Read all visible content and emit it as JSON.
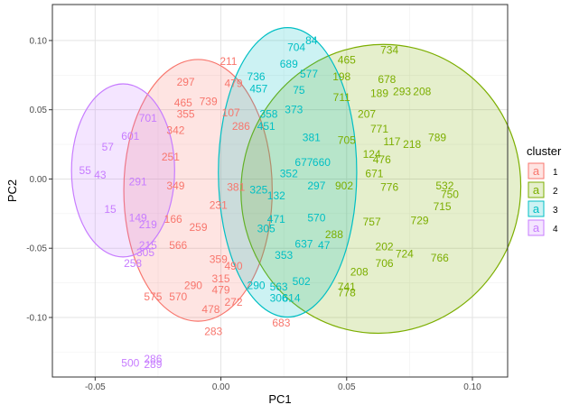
{
  "chart_data": {
    "type": "scatter",
    "title": "",
    "xlabel": "PC1",
    "ylabel": "PC2",
    "xlim": [
      -0.067,
      0.114
    ],
    "ylim": [
      -0.143,
      0.126
    ],
    "x_ticks": [
      -0.05,
      0.0,
      0.05,
      0.1
    ],
    "x_tick_labels": [
      "-0.05",
      "0.00",
      "0.05",
      "0.10"
    ],
    "y_ticks": [
      -0.1,
      -0.05,
      0.0,
      0.05,
      0.1
    ],
    "y_tick_labels": [
      "-0.10",
      "-0.05",
      "0.00",
      "0.05",
      "0.10"
    ],
    "grid": true,
    "legend": {
      "title": "cluster",
      "position": "right",
      "symbol": "a",
      "entries": [
        "1",
        "2",
        "3",
        "4"
      ]
    },
    "series": [
      {
        "name": "1",
        "color": "#F8766D",
        "ellipse": {
          "cx": -0.0091,
          "cy": -0.0082,
          "rx": 0.0295,
          "ry": 0.0945,
          "angle_deg": 0
        },
        "points": [
          {
            "label": "211",
            "x": 0.003,
            "y": 0.085
          },
          {
            "label": "297",
            "x": -0.014,
            "y": 0.07
          },
          {
            "label": "479",
            "x": 0.005,
            "y": 0.069
          },
          {
            "label": "465",
            "x": -0.015,
            "y": 0.055
          },
          {
            "label": "739",
            "x": -0.005,
            "y": 0.056
          },
          {
            "label": "107",
            "x": 0.004,
            "y": 0.048
          },
          {
            "label": "355",
            "x": -0.014,
            "y": 0.047
          },
          {
            "label": "342",
            "x": -0.018,
            "y": 0.035
          },
          {
            "label": "286",
            "x": 0.008,
            "y": 0.038
          },
          {
            "label": "251",
            "x": -0.02,
            "y": 0.016
          },
          {
            "label": "381",
            "x": 0.006,
            "y": -0.006
          },
          {
            "label": "349",
            "x": -0.018,
            "y": -0.005
          },
          {
            "label": "166",
            "x": -0.019,
            "y": -0.029
          },
          {
            "label": "231",
            "x": -0.001,
            "y": -0.019
          },
          {
            "label": "259",
            "x": -0.009,
            "y": -0.035
          },
          {
            "label": "566",
            "x": -0.017,
            "y": -0.048
          },
          {
            "label": "359",
            "x": -0.001,
            "y": -0.058
          },
          {
            "label": "490",
            "x": 0.005,
            "y": -0.063
          },
          {
            "label": "315",
            "x": 0.0,
            "y": -0.072
          },
          {
            "label": "290",
            "x": -0.011,
            "y": -0.077
          },
          {
            "label": "570",
            "x": -0.017,
            "y": -0.085
          },
          {
            "label": "575",
            "x": -0.027,
            "y": -0.085
          },
          {
            "label": "479",
            "x": 0.0,
            "y": -0.08
          },
          {
            "label": "272",
            "x": 0.005,
            "y": -0.089
          },
          {
            "label": "478",
            "x": -0.004,
            "y": -0.094
          },
          {
            "label": "283",
            "x": -0.003,
            "y": -0.11
          },
          {
            "label": "683",
            "x": 0.024,
            "y": -0.104
          }
        ]
      },
      {
        "name": "2",
        "color": "#7CAE00",
        "ellipse": {
          "cx": 0.0636,
          "cy": -0.0071,
          "rx": 0.0555,
          "ry": 0.1045,
          "angle_deg": -14
        },
        "points": [
          {
            "label": "734",
            "x": 0.067,
            "y": 0.093
          },
          {
            "label": "465",
            "x": 0.05,
            "y": 0.086
          },
          {
            "label": "678",
            "x": 0.066,
            "y": 0.072
          },
          {
            "label": "198",
            "x": 0.048,
            "y": 0.074
          },
          {
            "label": "189",
            "x": 0.063,
            "y": 0.062
          },
          {
            "label": "293",
            "x": 0.072,
            "y": 0.063
          },
          {
            "label": "208",
            "x": 0.08,
            "y": 0.063
          },
          {
            "label": "711",
            "x": 0.048,
            "y": 0.059
          },
          {
            "label": "207",
            "x": 0.058,
            "y": 0.047
          },
          {
            "label": "771",
            "x": 0.063,
            "y": 0.036
          },
          {
            "label": "789",
            "x": 0.086,
            "y": 0.03
          },
          {
            "label": "117",
            "x": 0.068,
            "y": 0.027
          },
          {
            "label": "218",
            "x": 0.076,
            "y": 0.025
          },
          {
            "label": "705",
            "x": 0.05,
            "y": 0.028
          },
          {
            "label": "124",
            "x": 0.06,
            "y": 0.018
          },
          {
            "label": "476",
            "x": 0.064,
            "y": 0.014
          },
          {
            "label": "671",
            "x": 0.061,
            "y": 0.004
          },
          {
            "label": "776",
            "x": 0.067,
            "y": -0.006
          },
          {
            "label": "532",
            "x": 0.089,
            "y": -0.005
          },
          {
            "label": "750",
            "x": 0.091,
            "y": -0.011
          },
          {
            "label": "715",
            "x": 0.088,
            "y": -0.02
          },
          {
            "label": "729",
            "x": 0.079,
            "y": -0.03
          },
          {
            "label": "902",
            "x": 0.049,
            "y": -0.005
          },
          {
            "label": "757",
            "x": 0.06,
            "y": -0.031
          },
          {
            "label": "288",
            "x": 0.045,
            "y": -0.04
          },
          {
            "label": "202",
            "x": 0.065,
            "y": -0.049
          },
          {
            "label": "724",
            "x": 0.073,
            "y": -0.054
          },
          {
            "label": "766",
            "x": 0.087,
            "y": -0.057
          },
          {
            "label": "706",
            "x": 0.065,
            "y": -0.061
          },
          {
            "label": "208",
            "x": 0.055,
            "y": -0.067
          },
          {
            "label": "741",
            "x": 0.05,
            "y": -0.078
          },
          {
            "label": "778",
            "x": 0.05,
            "y": -0.082
          }
        ]
      },
      {
        "name": "3",
        "color": "#00BFC4",
        "ellipse": {
          "cx": 0.0265,
          "cy": 0.0048,
          "rx": 0.0275,
          "ry": 0.1045,
          "angle_deg": 0
        },
        "points": [
          {
            "label": "84",
            "x": 0.036,
            "y": 0.1
          },
          {
            "label": "704",
            "x": 0.03,
            "y": 0.095
          },
          {
            "label": "689",
            "x": 0.027,
            "y": 0.083
          },
          {
            "label": "736",
            "x": 0.014,
            "y": 0.074
          },
          {
            "label": "577",
            "x": 0.035,
            "y": 0.076
          },
          {
            "label": "75",
            "x": 0.031,
            "y": 0.064
          },
          {
            "label": "457",
            "x": 0.015,
            "y": 0.065
          },
          {
            "label": "373",
            "x": 0.029,
            "y": 0.05
          },
          {
            "label": "358",
            "x": 0.019,
            "y": 0.047
          },
          {
            "label": "451",
            "x": 0.018,
            "y": 0.038
          },
          {
            "label": "381",
            "x": 0.036,
            "y": 0.03
          },
          {
            "label": "677",
            "x": 0.033,
            "y": 0.012
          },
          {
            "label": "660",
            "x": 0.04,
            "y": 0.012
          },
          {
            "label": "297",
            "x": 0.038,
            "y": -0.005
          },
          {
            "label": "352",
            "x": 0.027,
            "y": 0.004
          },
          {
            "label": "325",
            "x": 0.015,
            "y": -0.008
          },
          {
            "label": "132",
            "x": 0.022,
            "y": -0.012
          },
          {
            "label": "570",
            "x": 0.038,
            "y": -0.028
          },
          {
            "label": "471",
            "x": 0.022,
            "y": -0.029
          },
          {
            "label": "305",
            "x": 0.018,
            "y": -0.036
          },
          {
            "label": "47",
            "x": 0.041,
            "y": -0.048
          },
          {
            "label": "637",
            "x": 0.033,
            "y": -0.047
          },
          {
            "label": "353",
            "x": 0.025,
            "y": -0.055
          },
          {
            "label": "502",
            "x": 0.032,
            "y": -0.074
          },
          {
            "label": "563",
            "x": 0.023,
            "y": -0.078
          },
          {
            "label": "306",
            "x": 0.023,
            "y": -0.086
          },
          {
            "label": "614",
            "x": 0.028,
            "y": -0.086
          },
          {
            "label": "290",
            "x": 0.014,
            "y": -0.077
          }
        ]
      },
      {
        "name": "4",
        "color": "#C77CFF",
        "ellipse": {
          "cx": -0.0389,
          "cy": 0.0062,
          "rx": 0.0205,
          "ry": 0.0625,
          "angle_deg": 0
        },
        "points": [
          {
            "label": "701",
            "x": -0.029,
            "y": 0.044
          },
          {
            "label": "601",
            "x": -0.036,
            "y": 0.031
          },
          {
            "label": "57",
            "x": -0.045,
            "y": 0.023
          },
          {
            "label": "55",
            "x": -0.054,
            "y": 0.006
          },
          {
            "label": "43",
            "x": -0.048,
            "y": 0.003
          },
          {
            "label": "291",
            "x": -0.033,
            "y": -0.002
          },
          {
            "label": "15",
            "x": -0.044,
            "y": -0.022
          },
          {
            "label": "149",
            "x": -0.033,
            "y": -0.028
          },
          {
            "label": "219",
            "x": -0.029,
            "y": -0.033
          },
          {
            "label": "215",
            "x": -0.029,
            "y": -0.048
          },
          {
            "label": "305",
            "x": -0.03,
            "y": -0.053
          },
          {
            "label": "258",
            "x": -0.035,
            "y": -0.061
          },
          {
            "label": "500",
            "x": -0.036,
            "y": -0.133
          },
          {
            "label": "286",
            "x": -0.027,
            "y": -0.13
          },
          {
            "label": "289",
            "x": -0.027,
            "y": -0.134
          }
        ]
      }
    ]
  }
}
